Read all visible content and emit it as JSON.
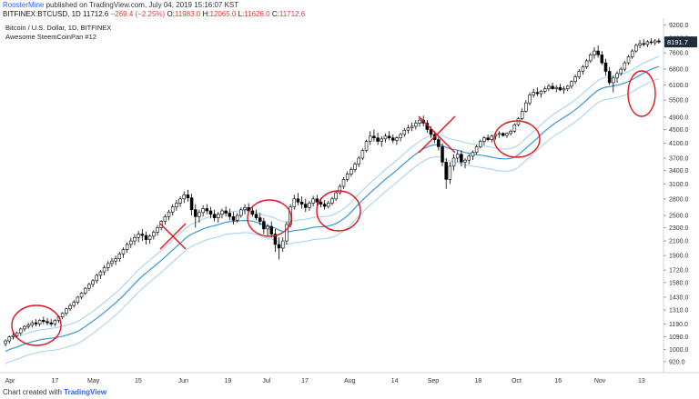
{
  "header": {
    "author": "RoosterMine",
    "published_text": "published on TradingView.com, July 04, 2019 15:16:07 KST",
    "symbol": "BITFINEX:BTCUSD, 1D",
    "close_label": "11712.6",
    "change_label": "−269.4 (−2.25%)",
    "open_label": "O:",
    "open_value": "11983.0",
    "high_label": "H:",
    "high_value": "12065.0",
    "low_label": "L:",
    "low_value": "11626.0",
    "closeL_label": "C:",
    "close_value": "11712.6"
  },
  "legend": {
    "title": "Bitcoin / U.S. Dollar, 1D, BITFINEX",
    "indicator": "Awesome SteemCoinPan #12"
  },
  "footer": {
    "prefix": "Chart created with",
    "brand": "TradingView"
  },
  "colors": {
    "up": "#ffffff",
    "down": "#000000",
    "wick": "#000000",
    "mid_band": "#3a97d4",
    "outer_band": "#9fd0ef",
    "annotation": "#e0141e",
    "price_tag": "#1f2d3a"
  },
  "chart_data": {
    "type": "candlestick",
    "title": "Bitcoin / U.S. Dollar, 1D, BITFINEX",
    "scale": "log",
    "ylim": [
      880,
      9400
    ],
    "y_ticks": [
      "9200.0",
      "8400.0",
      "7600.0",
      "6800.0",
      "6100.0",
      "5500.0",
      "4900.0",
      "4500.0",
      "4100.0",
      "3700.0",
      "3400.0",
      "3100.0",
      "2800.0",
      "2500.0",
      "2300.0",
      "2100.0",
      "1900.0",
      "1720.0",
      "1580.0",
      "1430.0",
      "1310.0",
      "1190.0",
      "1090.0",
      "1000.0",
      "920.0"
    ],
    "x_ticks": [
      "Apr",
      "17",
      "May",
      "15",
      "Jun",
      "19",
      "Jul",
      "17",
      "Aug",
      "14",
      "Sep",
      "18",
      "Oct",
      "16",
      "Nov",
      "13"
    ],
    "last_price": "8191.7",
    "candles": [
      [
        1040,
        1070,
        1020,
        1060
      ],
      [
        1060,
        1100,
        1040,
        1090
      ],
      [
        1090,
        1120,
        1070,
        1100
      ],
      [
        1100,
        1130,
        1080,
        1120
      ],
      [
        1120,
        1160,
        1100,
        1150
      ],
      [
        1150,
        1180,
        1130,
        1170
      ],
      [
        1170,
        1200,
        1150,
        1180
      ],
      [
        1180,
        1220,
        1160,
        1200
      ],
      [
        1200,
        1230,
        1170,
        1190
      ],
      [
        1190,
        1230,
        1170,
        1220
      ],
      [
        1220,
        1250,
        1190,
        1210
      ],
      [
        1210,
        1240,
        1180,
        1200
      ],
      [
        1200,
        1230,
        1170,
        1190
      ],
      [
        1190,
        1230,
        1170,
        1220
      ],
      [
        1220,
        1260,
        1200,
        1250
      ],
      [
        1250,
        1290,
        1230,
        1280
      ],
      [
        1280,
        1330,
        1260,
        1320
      ],
      [
        1320,
        1370,
        1300,
        1350
      ],
      [
        1350,
        1400,
        1330,
        1380
      ],
      [
        1380,
        1440,
        1360,
        1430
      ],
      [
        1430,
        1480,
        1410,
        1470
      ],
      [
        1470,
        1530,
        1450,
        1520
      ],
      [
        1520,
        1580,
        1490,
        1560
      ],
      [
        1560,
        1620,
        1530,
        1600
      ],
      [
        1600,
        1680,
        1570,
        1660
      ],
      [
        1660,
        1720,
        1620,
        1700
      ],
      [
        1700,
        1780,
        1660,
        1750
      ],
      [
        1750,
        1830,
        1710,
        1800
      ],
      [
        1800,
        1870,
        1760,
        1830
      ],
      [
        1830,
        1900,
        1780,
        1860
      ],
      [
        1860,
        1950,
        1820,
        1920
      ],
      [
        1920,
        2010,
        1870,
        1980
      ],
      [
        1980,
        2080,
        1940,
        2050
      ],
      [
        2050,
        2150,
        2000,
        2100
      ],
      [
        2100,
        2200,
        2040,
        2150
      ],
      [
        2150,
        2250,
        2080,
        2200
      ],
      [
        2200,
        2280,
        2100,
        2180
      ],
      [
        2180,
        2240,
        2050,
        2120
      ],
      [
        2120,
        2200,
        2060,
        2170
      ],
      [
        2170,
        2260,
        2120,
        2230
      ],
      [
        2230,
        2340,
        2180,
        2300
      ],
      [
        2300,
        2420,
        2260,
        2400
      ],
      [
        2400,
        2520,
        2350,
        2480
      ],
      [
        2480,
        2600,
        2420,
        2560
      ],
      [
        2560,
        2700,
        2500,
        2650
      ],
      [
        2650,
        2780,
        2580,
        2720
      ],
      [
        2720,
        2850,
        2650,
        2800
      ],
      [
        2800,
        2950,
        2720,
        2880
      ],
      [
        2880,
        2980,
        2750,
        2820
      ],
      [
        2820,
        2900,
        2500,
        2600
      ],
      [
        2600,
        2700,
        2300,
        2480
      ],
      [
        2480,
        2600,
        2380,
        2550
      ],
      [
        2550,
        2680,
        2480,
        2620
      ],
      [
        2620,
        2700,
        2520,
        2580
      ],
      [
        2580,
        2650,
        2450,
        2520
      ],
      [
        2520,
        2600,
        2400,
        2460
      ],
      [
        2460,
        2560,
        2380,
        2520
      ],
      [
        2520,
        2620,
        2450,
        2580
      ],
      [
        2580,
        2660,
        2480,
        2540
      ],
      [
        2540,
        2620,
        2420,
        2480
      ],
      [
        2480,
        2560,
        2350,
        2420
      ],
      [
        2420,
        2540,
        2380,
        2500
      ],
      [
        2500,
        2640,
        2460,
        2600
      ],
      [
        2600,
        2700,
        2520,
        2640
      ],
      [
        2640,
        2720,
        2540,
        2580
      ],
      [
        2580,
        2650,
        2480,
        2520
      ],
      [
        2520,
        2600,
        2420,
        2460
      ],
      [
        2460,
        2540,
        2340,
        2400
      ],
      [
        2400,
        2460,
        2200,
        2280
      ],
      [
        2280,
        2360,
        2180,
        2320
      ],
      [
        2320,
        2400,
        2150,
        2200
      ],
      [
        2200,
        2280,
        1950,
        2050
      ],
      [
        2050,
        2150,
        1850,
        2000
      ],
      [
        2000,
        2150,
        1950,
        2100
      ],
      [
        2100,
        2400,
        2050,
        2350
      ],
      [
        2350,
        2700,
        2300,
        2650
      ],
      [
        2650,
        2880,
        2600,
        2800
      ],
      [
        2800,
        2920,
        2680,
        2740
      ],
      [
        2740,
        2850,
        2620,
        2700
      ],
      [
        2700,
        2800,
        2560,
        2640
      ],
      [
        2640,
        2760,
        2580,
        2720
      ],
      [
        2720,
        2860,
        2660,
        2800
      ],
      [
        2800,
        2880,
        2680,
        2740
      ],
      [
        2740,
        2820,
        2640,
        2700
      ],
      [
        2700,
        2780,
        2600,
        2660
      ],
      [
        2660,
        2760,
        2620,
        2720
      ],
      [
        2720,
        2840,
        2680,
        2800
      ],
      [
        2800,
        2960,
        2760,
        2920
      ],
      [
        2920,
        3100,
        2880,
        3050
      ],
      [
        3050,
        3250,
        3000,
        3200
      ],
      [
        3200,
        3380,
        3150,
        3320
      ],
      [
        3320,
        3480,
        3260,
        3420
      ],
      [
        3420,
        3600,
        3360,
        3550
      ],
      [
        3550,
        3750,
        3480,
        3700
      ],
      [
        3700,
        3950,
        3650,
        3900
      ],
      [
        3900,
        4200,
        3850,
        4150
      ],
      [
        4150,
        4450,
        4050,
        4300
      ],
      [
        4300,
        4500,
        4150,
        4250
      ],
      [
        4250,
        4400,
        4050,
        4150
      ],
      [
        4150,
        4300,
        4000,
        4220
      ],
      [
        4220,
        4380,
        4120,
        4300
      ],
      [
        4300,
        4450,
        4180,
        4250
      ],
      [
        4250,
        4350,
        4100,
        4180
      ],
      [
        4180,
        4300,
        4050,
        4250
      ],
      [
        4250,
        4400,
        4150,
        4350
      ],
      [
        4350,
        4550,
        4280,
        4480
      ],
      [
        4480,
        4650,
        4380,
        4550
      ],
      [
        4550,
        4720,
        4450,
        4600
      ],
      [
        4600,
        4800,
        4500,
        4700
      ],
      [
        4700,
        4900,
        4580,
        4800
      ],
      [
        4800,
        4950,
        4600,
        4700
      ],
      [
        4700,
        4800,
        4400,
        4500
      ],
      [
        4500,
        4600,
        4250,
        4350
      ],
      [
        4350,
        4450,
        4100,
        4200
      ],
      [
        4200,
        4300,
        3900,
        4000
      ],
      [
        4000,
        4100,
        3500,
        3600
      ],
      [
        3600,
        3700,
        3000,
        3200
      ],
      [
        3200,
        3600,
        3100,
        3500
      ],
      [
        3500,
        3800,
        3400,
        3700
      ],
      [
        3700,
        3900,
        3600,
        3800
      ],
      [
        3800,
        3900,
        3500,
        3600
      ],
      [
        3600,
        3700,
        3450,
        3650
      ],
      [
        3650,
        3800,
        3550,
        3750
      ],
      [
        3750,
        3900,
        3650,
        3850
      ],
      [
        3850,
        4050,
        3800,
        4000
      ],
      [
        4000,
        4200,
        3950,
        4150
      ],
      [
        4150,
        4300,
        4050,
        4250
      ],
      [
        4250,
        4350,
        4150,
        4200
      ],
      [
        4200,
        4350,
        4120,
        4300
      ],
      [
        4300,
        4400,
        4200,
        4350
      ],
      [
        4350,
        4450,
        4250,
        4380
      ],
      [
        4380,
        4420,
        4280,
        4320
      ],
      [
        4320,
        4420,
        4250,
        4380
      ],
      [
        4380,
        4500,
        4320,
        4450
      ],
      [
        4450,
        4700,
        4400,
        4650
      ],
      [
        4650,
        4900,
        4600,
        4850
      ],
      [
        4850,
        5200,
        4800,
        5100
      ],
      [
        5100,
        5500,
        5050,
        5400
      ],
      [
        5400,
        5800,
        5300,
        5700
      ],
      [
        5700,
        5950,
        5600,
        5800
      ],
      [
        5800,
        6000,
        5650,
        5750
      ],
      [
        5750,
        5900,
        5600,
        5850
      ],
      [
        5850,
        6050,
        5750,
        5950
      ],
      [
        5950,
        6150,
        5850,
        6050
      ],
      [
        6050,
        6200,
        5900,
        5950
      ],
      [
        5950,
        6100,
        5800,
        6000
      ],
      [
        6000,
        6150,
        5850,
        5900
      ],
      [
        5900,
        6050,
        5750,
        5950
      ],
      [
        5950,
        6100,
        5850,
        6050
      ],
      [
        6050,
        6300,
        5950,
        6250
      ],
      [
        6250,
        6550,
        6150,
        6450
      ],
      [
        6450,
        6800,
        6350,
        6700
      ],
      [
        6700,
        7000,
        6550,
        6900
      ],
      [
        6900,
        7300,
        6800,
        7200
      ],
      [
        7200,
        7600,
        7100,
        7500
      ],
      [
        7500,
        7900,
        7300,
        7700
      ],
      [
        7700,
        8000,
        7350,
        7500
      ],
      [
        7500,
        7700,
        7000,
        7100
      ],
      [
        7100,
        7300,
        6500,
        6700
      ],
      [
        6700,
        6900,
        6100,
        6200
      ],
      [
        6200,
        6500,
        5800,
        6400
      ],
      [
        6400,
        6700,
        6200,
        6600
      ],
      [
        6600,
        6900,
        6500,
        6800
      ],
      [
        6800,
        7200,
        6700,
        7100
      ],
      [
        7100,
        7500,
        7000,
        7400
      ],
      [
        7400,
        7800,
        7300,
        7700
      ],
      [
        7700,
        8100,
        7600,
        8000
      ],
      [
        8000,
        8300,
        7850,
        8100
      ],
      [
        8100,
        8350,
        7950,
        8050
      ],
      [
        8050,
        8300,
        7900,
        8200
      ],
      [
        8200,
        8400,
        8050,
        8150
      ],
      [
        8150,
        8350,
        8000,
        8250
      ],
      [
        8250,
        8400,
        8100,
        8191.7
      ]
    ]
  }
}
